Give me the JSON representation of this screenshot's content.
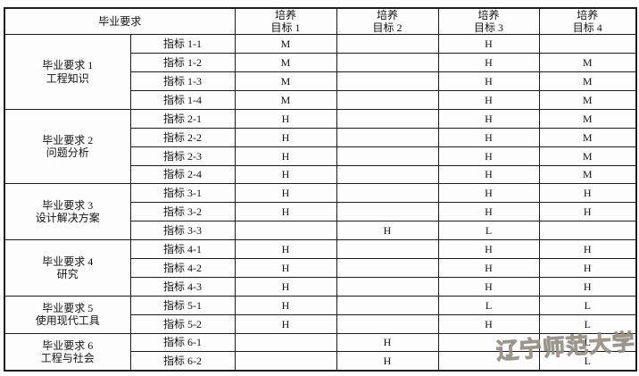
{
  "table": {
    "header": {
      "requirement": "毕业要求",
      "objectives": [
        {
          "line1": "培养",
          "line2": "目标 1"
        },
        {
          "line1": "培养",
          "line2": "目标 2"
        },
        {
          "line1": "培养",
          "line2": "目标 3"
        },
        {
          "line1": "培养",
          "line2": "目标 4"
        }
      ]
    },
    "groups": [
      {
        "requirement_no": "毕业要求 1",
        "requirement_name": "工程知识",
        "rows": [
          {
            "indicator": "指标 1-1",
            "values": [
              "M",
              "",
              "H",
              ""
            ]
          },
          {
            "indicator": "指标 1-2",
            "values": [
              "M",
              "",
              "H",
              "M"
            ]
          },
          {
            "indicator": "指标 1-3",
            "values": [
              "M",
              "",
              "H",
              "M"
            ]
          },
          {
            "indicator": "指标 1-4",
            "values": [
              "M",
              "",
              "H",
              "M"
            ]
          }
        ]
      },
      {
        "requirement_no": "毕业要求 2",
        "requirement_name": "问题分析",
        "rows": [
          {
            "indicator": "指标 2-1",
            "values": [
              "H",
              "",
              "H",
              "M"
            ]
          },
          {
            "indicator": "指标 2-2",
            "values": [
              "H",
              "",
              "H",
              "M"
            ]
          },
          {
            "indicator": "指标 2-3",
            "values": [
              "H",
              "",
              "H",
              "M"
            ]
          },
          {
            "indicator": "指标 2-4",
            "values": [
              "H",
              "",
              "H",
              "M"
            ]
          }
        ]
      },
      {
        "requirement_no": "毕业要求 3",
        "requirement_name": "设计解决方案",
        "rows": [
          {
            "indicator": "指标 3-1",
            "values": [
              "H",
              "",
              "H",
              "H"
            ]
          },
          {
            "indicator": "指标 3-2",
            "values": [
              "H",
              "",
              "H",
              "H"
            ]
          },
          {
            "indicator": "指标 3-3",
            "values": [
              "",
              "H",
              "L",
              ""
            ]
          }
        ]
      },
      {
        "requirement_no": "毕业要求 4",
        "requirement_name": "研究",
        "rows": [
          {
            "indicator": "指标 4-1",
            "values": [
              "H",
              "",
              "H",
              "H"
            ]
          },
          {
            "indicator": "指标 4-2",
            "values": [
              "H",
              "",
              "H",
              "H"
            ]
          },
          {
            "indicator": "指标 4-3",
            "values": [
              "H",
              "",
              "H",
              "H"
            ]
          }
        ]
      },
      {
        "requirement_no": "毕业要求 5",
        "requirement_name": "使用现代工具",
        "rows": [
          {
            "indicator": "指标 5-1",
            "values": [
              "H",
              "",
              "L",
              "L"
            ]
          },
          {
            "indicator": "指标 5-2",
            "values": [
              "H",
              "",
              "H",
              "L"
            ]
          }
        ]
      },
      {
        "requirement_no": "毕业要求 6",
        "requirement_name": "工程与社会",
        "rows": [
          {
            "indicator": "指标 6-1",
            "values": [
              "",
              "H",
              "",
              "L"
            ]
          },
          {
            "indicator": "指标 6-2",
            "values": [
              "",
              "H",
              "",
              "L"
            ]
          }
        ]
      }
    ]
  },
  "watermark": {
    "text": "辽宁师范大学"
  },
  "colors": {
    "border": "#1c1c1c",
    "watermark_stroke": "#918a80",
    "background": "#fdfdfd"
  }
}
